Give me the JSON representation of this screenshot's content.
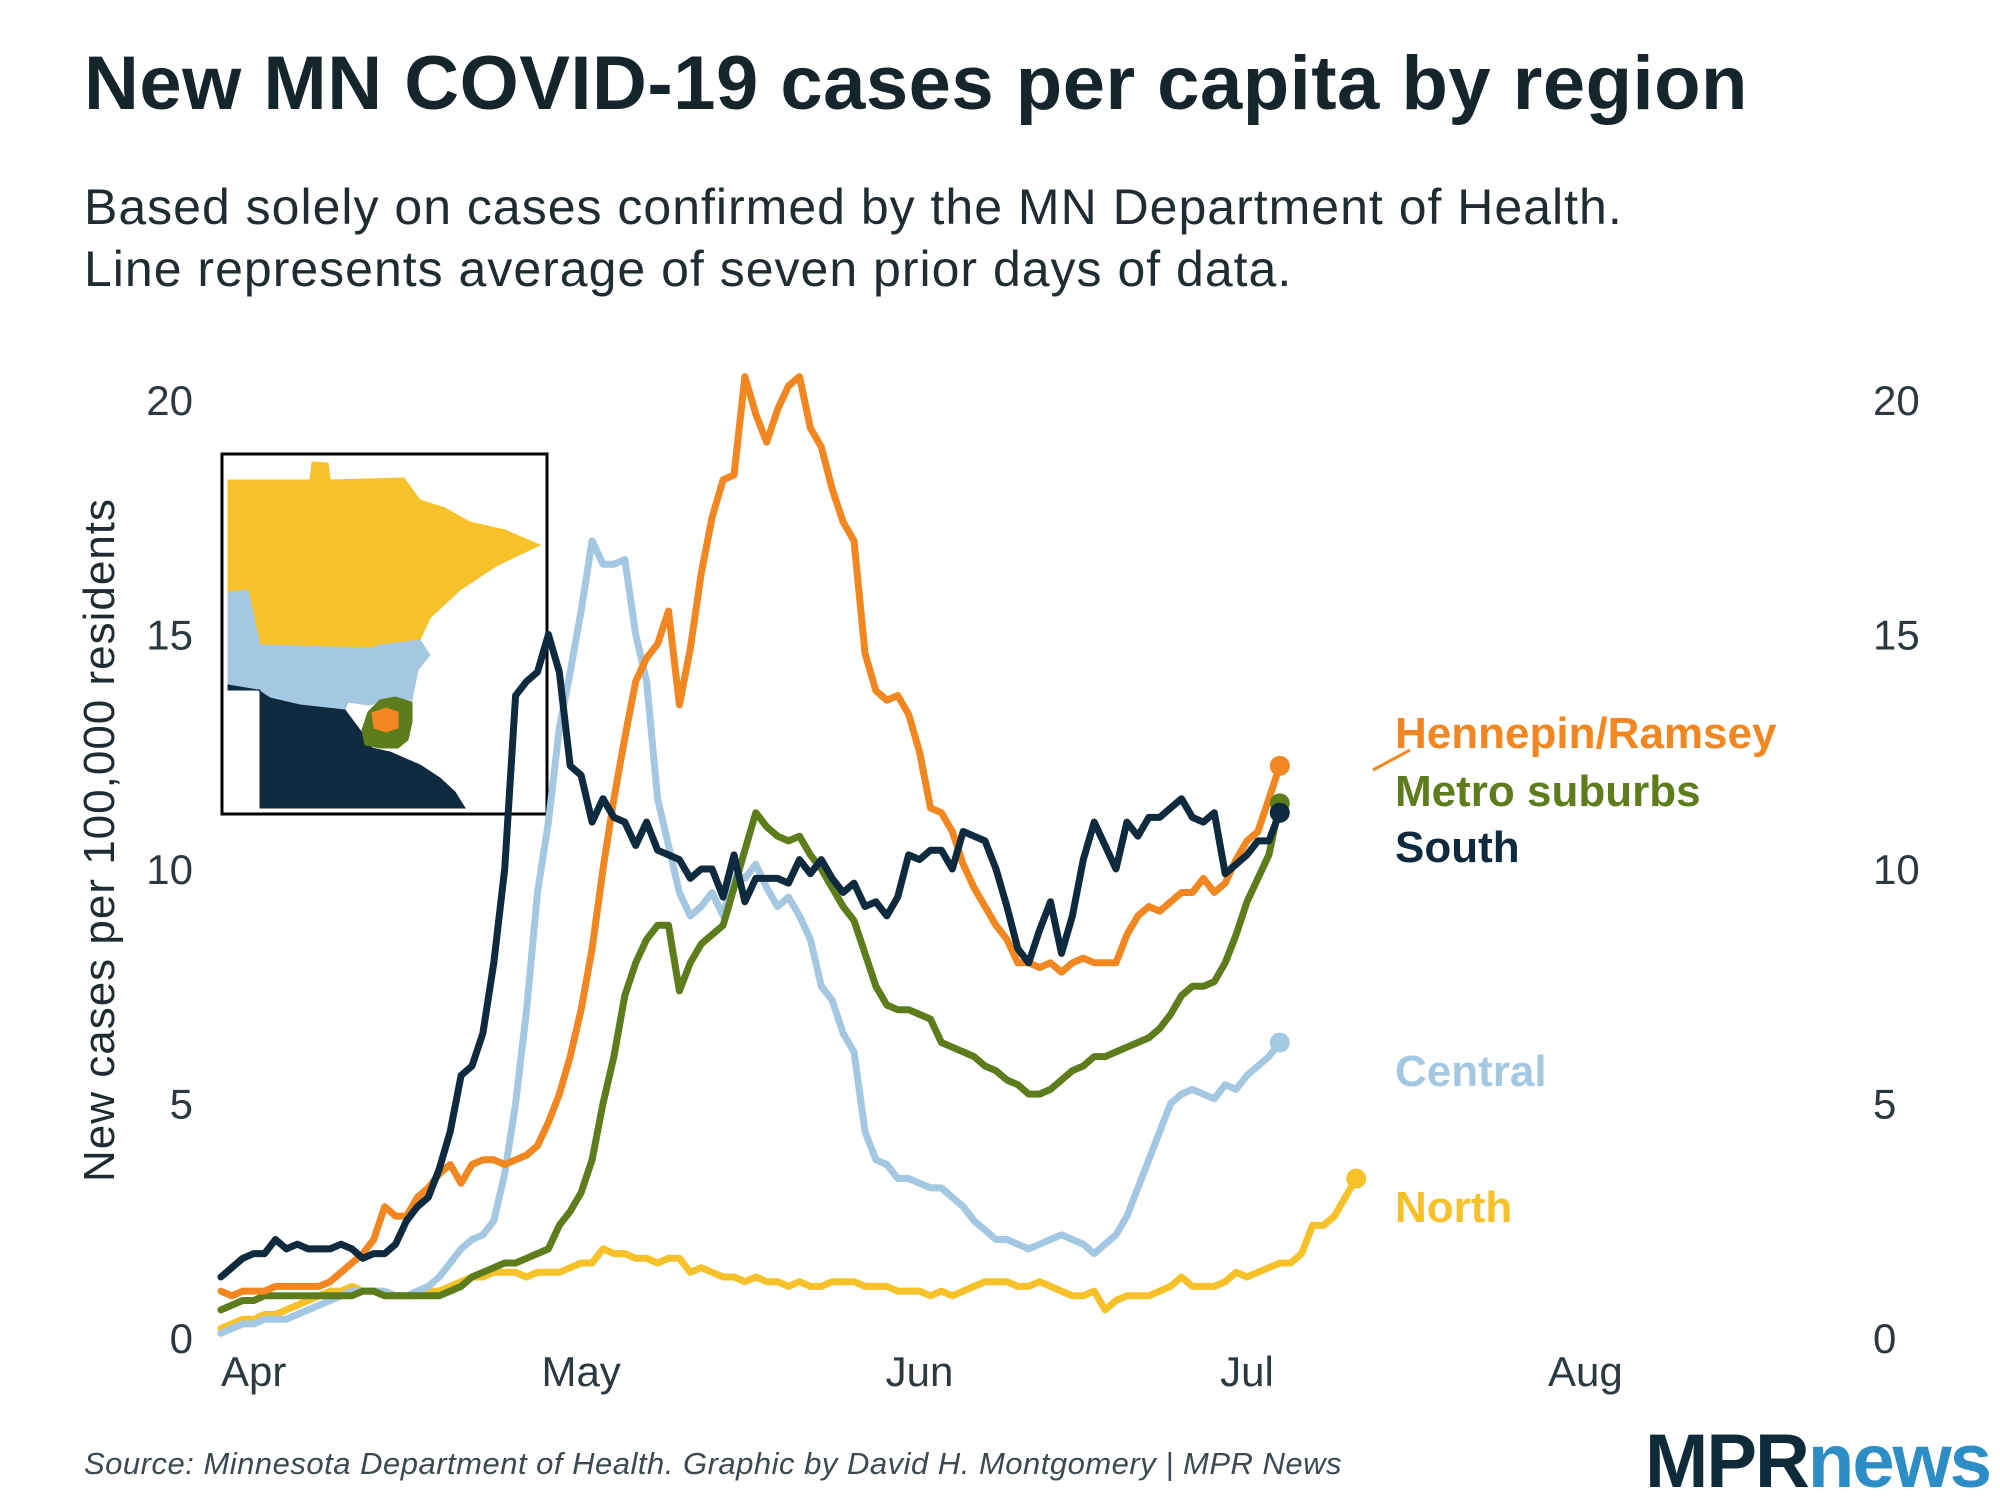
{
  "title": "New MN COVID-19 cases per capita by region",
  "subtitle_line1": "Based solely on cases confirmed by the MN Department of Health.",
  "subtitle_line2": "Line represents average of seven prior days of data.",
  "source": "Source: Minnesota Department of Health. Graphic by David H. Montgomery | MPR News",
  "logo": {
    "part1": "MPR",
    "part2": "news"
  },
  "chart_data": {
    "type": "line",
    "title": "New MN COVID-19 cases per capita by region",
    "xlabel": "",
    "ylabel": "New cases per 100,000 residents",
    "ylim": [
      0,
      20
    ],
    "yticks": [
      0,
      5,
      10,
      15,
      20
    ],
    "xlim": [
      -3,
      128
    ],
    "xticks": [
      {
        "label": "Apr",
        "day": 1
      },
      {
        "label": "May",
        "day": 31
      },
      {
        "label": "Jun",
        "day": 62
      },
      {
        "label": "Jul",
        "day": 92
      },
      {
        "label": "Aug",
        "day": 123
      }
    ],
    "x_start_day": -2,
    "legend": "direct labels at line ends (right)",
    "series": [
      {
        "name": "North",
        "color": "#f7c12a",
        "values": [
          0.2,
          0.3,
          0.4,
          0.4,
          0.5,
          0.5,
          0.6,
          0.7,
          0.8,
          0.9,
          1.0,
          1.0,
          1.1,
          1.0,
          1.0,
          0.9,
          0.9,
          0.9,
          0.9,
          1.0,
          1.0,
          1.1,
          1.2,
          1.3,
          1.3,
          1.4,
          1.4,
          1.4,
          1.3,
          1.4,
          1.4,
          1.4,
          1.5,
          1.6,
          1.6,
          1.9,
          1.8,
          1.8,
          1.7,
          1.7,
          1.6,
          1.7,
          1.7,
          1.4,
          1.5,
          1.4,
          1.3,
          1.3,
          1.2,
          1.3,
          1.2,
          1.2,
          1.1,
          1.2,
          1.1,
          1.1,
          1.2,
          1.2,
          1.2,
          1.1,
          1.1,
          1.1,
          1.0,
          1.0,
          1.0,
          0.9,
          1.0,
          0.9,
          1.0,
          1.1,
          1.2,
          1.2,
          1.2,
          1.1,
          1.1,
          1.2,
          1.1,
          1.0,
          0.9,
          0.9,
          1.0,
          0.6,
          0.8,
          0.9,
          0.9,
          0.9,
          1.0,
          1.1,
          1.3,
          1.1,
          1.1,
          1.1,
          1.2,
          1.4,
          1.3,
          1.4,
          1.5,
          1.6,
          1.6,
          1.8,
          2.4,
          2.4,
          2.6,
          3.0,
          3.4
        ]
      },
      {
        "name": "Central",
        "color": "#a4c7e2",
        "values": [
          0.1,
          0.2,
          0.3,
          0.3,
          0.4,
          0.4,
          0.4,
          0.5,
          0.6,
          0.7,
          0.8,
          0.9,
          1.0,
          1.0,
          1.0,
          1.0,
          0.9,
          0.9,
          1.0,
          1.1,
          1.3,
          1.6,
          1.9,
          2.1,
          2.2,
          2.5,
          3.5,
          5.0,
          7.0,
          9.5,
          11.0,
          13.0,
          14.2,
          15.5,
          17.0,
          16.5,
          16.5,
          16.6,
          15.0,
          14.0,
          11.5,
          10.5,
          9.5,
          9.0,
          9.2,
          9.5,
          9.0,
          9.9,
          9.8,
          10.1,
          9.6,
          9.2,
          9.4,
          9.0,
          8.5,
          7.5,
          7.2,
          6.5,
          6.1,
          4.4,
          3.8,
          3.7,
          3.4,
          3.4,
          3.3,
          3.2,
          3.2,
          3.0,
          2.8,
          2.5,
          2.3,
          2.1,
          2.1,
          2.0,
          1.9,
          2.0,
          2.1,
          2.2,
          2.1,
          2.0,
          1.8,
          2.0,
          2.2,
          2.6,
          3.2,
          3.8,
          4.4,
          5.0,
          5.2,
          5.3,
          5.2,
          5.1,
          5.4,
          5.3,
          5.6,
          5.8,
          6.0,
          6.3
        ]
      },
      {
        "name": "Metro suburbs",
        "color": "#5d7d1c",
        "values": [
          0.6,
          0.7,
          0.8,
          0.8,
          0.9,
          0.9,
          0.9,
          0.9,
          0.9,
          0.9,
          0.9,
          0.9,
          0.9,
          1.0,
          1.0,
          0.9,
          0.9,
          0.9,
          0.9,
          0.9,
          0.9,
          1.0,
          1.1,
          1.3,
          1.4,
          1.5,
          1.6,
          1.6,
          1.7,
          1.8,
          1.9,
          2.4,
          2.7,
          3.1,
          3.8,
          5.0,
          6.0,
          7.3,
          8.0,
          8.5,
          8.8,
          8.8,
          7.4,
          8.0,
          8.4,
          8.6,
          8.8,
          9.6,
          10.4,
          11.2,
          10.9,
          10.7,
          10.6,
          10.7,
          10.3,
          10.0,
          9.6,
          9.2,
          8.9,
          8.2,
          7.5,
          7.1,
          7.0,
          7.0,
          6.9,
          6.8,
          6.3,
          6.2,
          6.1,
          6.0,
          5.8,
          5.7,
          5.5,
          5.4,
          5.2,
          5.2,
          5.3,
          5.5,
          5.7,
          5.8,
          6.0,
          6.0,
          6.1,
          6.2,
          6.3,
          6.4,
          6.6,
          6.9,
          7.3,
          7.5,
          7.5,
          7.6,
          8.0,
          8.6,
          9.3,
          9.8,
          10.3,
          11.4
        ]
      },
      {
        "name": "Hennepin/Ramsey",
        "color": "#f28721",
        "values": [
          1.0,
          0.9,
          1.0,
          1.0,
          1.0,
          1.1,
          1.1,
          1.1,
          1.1,
          1.1,
          1.2,
          1.4,
          1.6,
          1.8,
          2.1,
          2.8,
          2.6,
          2.6,
          3.0,
          3.2,
          3.5,
          3.7,
          3.3,
          3.7,
          3.8,
          3.8,
          3.7,
          3.8,
          3.9,
          4.1,
          4.6,
          5.2,
          6.0,
          7.0,
          8.3,
          10.0,
          11.5,
          12.8,
          14.0,
          14.5,
          14.8,
          15.5,
          13.5,
          14.7,
          16.3,
          17.5,
          18.3,
          18.4,
          20.5,
          19.7,
          19.1,
          19.8,
          20.3,
          20.5,
          19.4,
          19.0,
          18.1,
          17.4,
          17.0,
          14.6,
          13.8,
          13.6,
          13.7,
          13.3,
          12.5,
          11.3,
          11.2,
          10.8,
          10.1,
          9.6,
          9.2,
          8.8,
          8.5,
          8.0,
          8.0,
          7.9,
          8.0,
          7.8,
          8.0,
          8.1,
          8.0,
          8.0,
          8.0,
          8.6,
          9.0,
          9.2,
          9.1,
          9.3,
          9.5,
          9.5,
          9.8,
          9.5,
          9.7,
          10.2,
          10.6,
          10.8,
          11.5,
          12.2
        ]
      },
      {
        "name": "South",
        "color": "#0e2a3e",
        "values": [
          1.3,
          1.5,
          1.7,
          1.8,
          1.8,
          2.1,
          1.9,
          2.0,
          1.9,
          1.9,
          1.9,
          2.0,
          1.9,
          1.7,
          1.8,
          1.8,
          2.0,
          2.5,
          2.8,
          3.0,
          3.6,
          4.4,
          5.6,
          5.8,
          6.5,
          8.0,
          10.0,
          13.7,
          14.0,
          14.2,
          15.0,
          14.2,
          12.2,
          12.0,
          11.0,
          11.5,
          11.1,
          11.0,
          10.5,
          11.0,
          10.4,
          10.3,
          10.2,
          9.8,
          10.0,
          10.0,
          9.4,
          10.3,
          9.3,
          9.8,
          9.8,
          9.8,
          9.7,
          10.2,
          9.9,
          10.2,
          9.8,
          9.5,
          9.7,
          9.2,
          9.3,
          9.0,
          9.4,
          10.3,
          10.2,
          10.4,
          10.4,
          10.0,
          10.8,
          10.7,
          10.6,
          10.0,
          9.2,
          8.3,
          8.0,
          8.7,
          9.3,
          8.2,
          9.0,
          10.2,
          11.0,
          10.5,
          10.0,
          11.0,
          10.7,
          11.1,
          11.1,
          11.3,
          11.5,
          11.1,
          11.0,
          11.2,
          9.9,
          10.1,
          10.3,
          10.6,
          10.6,
          11.2
        ]
      }
    ]
  },
  "inset_map": {
    "regions": [
      {
        "name": "North",
        "color": "#f7c12a"
      },
      {
        "name": "Central",
        "color": "#a4c7e2"
      },
      {
        "name": "Metro suburbs",
        "color": "#5d7d1c"
      },
      {
        "name": "Hennepin/Ramsey",
        "color": "#f28721"
      },
      {
        "name": "South",
        "color": "#0e2a3e"
      }
    ]
  }
}
